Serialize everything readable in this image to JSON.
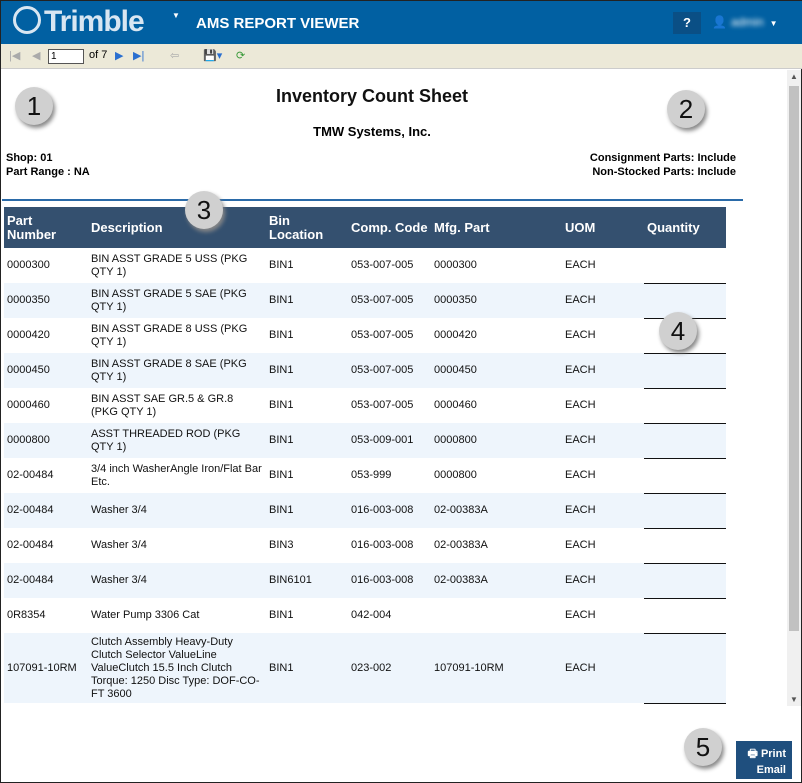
{
  "header": {
    "brand": "Trimble",
    "title": "AMS REPORT VIEWER",
    "help": "?",
    "user": "admin"
  },
  "toolbar": {
    "page": "1",
    "of": "of 7"
  },
  "report": {
    "title": "Inventory Count Sheet",
    "company": "TMW Systems, Inc.",
    "shop": "Shop: 01",
    "part_range": "Part Range : NA",
    "consignment": "Consignment Parts: Include",
    "non_stocked": "Non-Stocked Parts: Include"
  },
  "columns": [
    "Part Number",
    "Description",
    "Bin Location",
    "Comp. Code",
    "Mfg. Part",
    "UOM",
    "Quantity"
  ],
  "rows": [
    [
      "0000300",
      "BIN ASST GRADE 5 USS (PKG QTY 1)",
      "BIN1",
      "053-007-005",
      "0000300",
      "EACH",
      ""
    ],
    [
      "0000350",
      "BIN ASST  GRADE 5 SAE (PKG QTY 1)",
      "BIN1",
      "053-007-005",
      "0000350",
      "EACH",
      ""
    ],
    [
      "0000420",
      "BIN ASST GRADE 8 USS (PKG QTY 1)",
      "BIN1",
      "053-007-005",
      "0000420",
      "EACH",
      ""
    ],
    [
      "0000450",
      "BIN ASST  GRADE 8 SAE (PKG QTY 1)",
      "BIN1",
      "053-007-005",
      "0000450",
      "EACH",
      ""
    ],
    [
      "0000460",
      "BIN ASST SAE GR.5 & GR.8 (PKG QTY 1)",
      "BIN1",
      "053-007-005",
      "0000460",
      "EACH",
      ""
    ],
    [
      "0000800",
      "ASST THREADED ROD (PKG QTY 1)",
      "BIN1",
      "053-009-001",
      "0000800",
      "EACH",
      ""
    ],
    [
      "02-00484",
      "3/4 inch WasherAngle Iron/Flat Bar Etc.",
      "BIN1",
      "053-999",
      "0000800",
      "EACH",
      ""
    ],
    [
      "02-00484",
      "Washer 3/4",
      "BIN1",
      "016-003-008",
      "02-00383A",
      "EACH",
      ""
    ],
    [
      "02-00484",
      "Washer 3/4",
      "BIN3",
      "016-003-008",
      "02-00383A",
      "EACH",
      ""
    ],
    [
      "02-00484",
      "Washer 3/4",
      "BIN6101",
      "016-003-008",
      "02-00383A",
      "EACH",
      ""
    ],
    [
      "0R8354",
      "Water Pump 3306 Cat",
      "BIN1",
      "042-004",
      "",
      "EACH",
      ""
    ],
    [
      "107091-10RM",
      "Clutch Assembly Heavy-Duty Clutch Selector ValueLine ValueClutch 15.5 Inch Clutch Torque: 1250 Disc Type: DOF-CO-FT 3600",
      "BIN1",
      "023-002",
      "107091-10RM",
      "EACH",
      ""
    ]
  ],
  "callouts": [
    "1",
    "2",
    "3",
    "4",
    "5"
  ],
  "actions": {
    "print": "Print",
    "email": "Email"
  },
  "colors": {
    "header": "#0160a2",
    "table_header": "#34506f",
    "row_alt": "#eef5fc"
  }
}
